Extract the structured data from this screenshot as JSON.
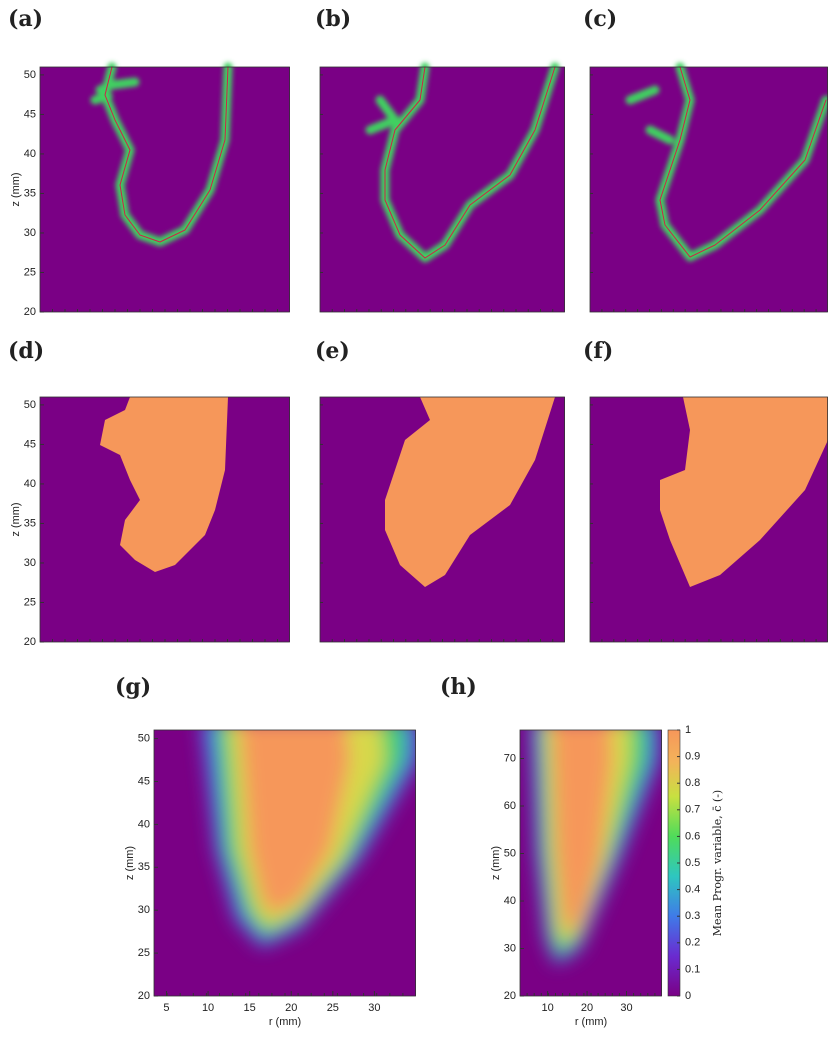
{
  "chart_data": [
    {
      "type": "heatmap",
      "label": "(a)",
      "ylabel": "z (mm)",
      "ylim": [
        20,
        51
      ],
      "yticks": [
        20,
        25,
        30,
        35,
        40,
        45,
        50
      ]
    },
    {
      "type": "heatmap",
      "label": "(b)"
    },
    {
      "type": "heatmap",
      "label": "(c)"
    },
    {
      "type": "heatmap",
      "label": "(d)",
      "ylabel": "z (mm)",
      "ylim": [
        20,
        51
      ],
      "yticks": [
        20,
        25,
        30,
        35,
        40,
        45,
        50
      ]
    },
    {
      "type": "heatmap",
      "label": "(e)"
    },
    {
      "type": "heatmap",
      "label": "(f)"
    },
    {
      "type": "heatmap",
      "label": "(g)",
      "ylabel": "z (mm)",
      "xlabel": "r (mm)",
      "xlim": [
        3.5,
        35
      ],
      "xticks": [
        5,
        10,
        15,
        20,
        25,
        30
      ],
      "ylim": [
        20,
        51
      ],
      "yticks": [
        20,
        25,
        30,
        35,
        40,
        45,
        50
      ]
    },
    {
      "type": "heatmap",
      "label": "(h)",
      "ylabel": "z (mm)",
      "xlabel": "r (mm)",
      "xlim": [
        3,
        39
      ],
      "xticks": [
        10,
        20,
        30
      ],
      "ylim": [
        20,
        76
      ],
      "yticks": [
        20,
        30,
        40,
        50,
        60,
        70
      ],
      "colorbar": {
        "label": "Mean Progr. variable, c̄ (-)",
        "lim": [
          0,
          1
        ],
        "ticks": [
          0,
          0.1,
          0.2,
          0.3,
          0.4,
          0.5,
          0.6,
          0.7,
          0.8,
          0.9,
          1
        ]
      }
    }
  ]
}
